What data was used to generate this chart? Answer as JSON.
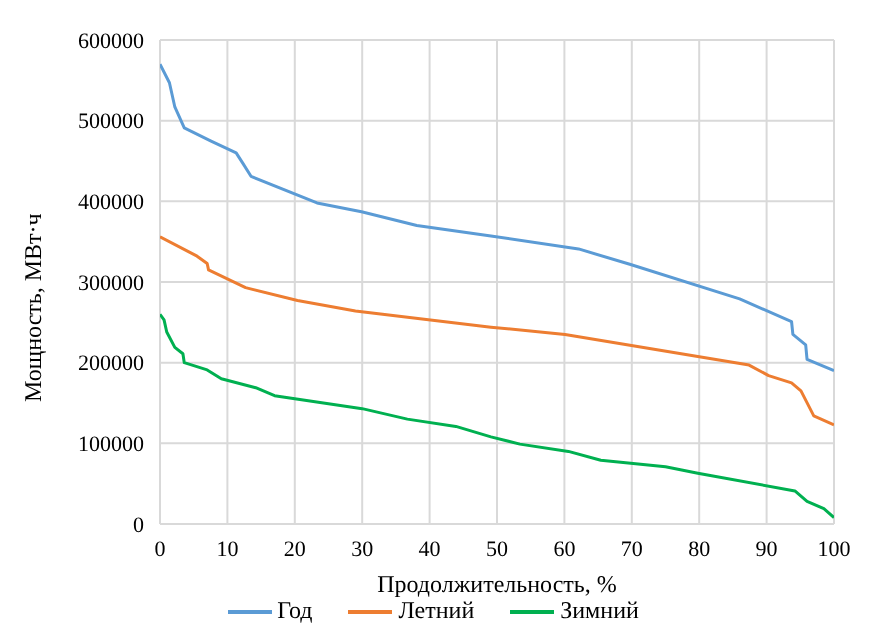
{
  "chart_data": {
    "type": "line",
    "xlabel": "Продолжительность, %",
    "ylabel": "Мощность, МВт·ч",
    "xlim": [
      0,
      100
    ],
    "xticks": [
      0,
      10,
      20,
      30,
      40,
      50,
      60,
      70,
      80,
      90,
      100
    ],
    "ylim": [
      0,
      600000
    ],
    "yticks": [
      0,
      100000,
      200000,
      300000,
      400000,
      500000,
      600000
    ],
    "grid": true,
    "legend": "bottom",
    "marker": "none",
    "line_style": "solid",
    "series": [
      {
        "name": "Год",
        "color": "#5b9bd5",
        "x": [
          0,
          1.4,
          2.2,
          3.6,
          7.5,
          11.3,
          12.3,
          13.5,
          23.3,
          29.9,
          38.1,
          49.1,
          62.1,
          69.7,
          86,
          93.7,
          93.9,
          95.8,
          96,
          100
        ],
        "values": [
          570000,
          547000,
          517000,
          491000,
          475000,
          460000,
          447000,
          431000,
          398000,
          387000,
          370000,
          357000,
          341000,
          322000,
          279000,
          251000,
          235000,
          222000,
          204000,
          190000
        ]
      },
      {
        "name": "Летний",
        "color": "#ed7d31",
        "x": [
          0,
          5.5,
          7,
          7.2,
          12.7,
          20.4,
          29,
          49.1,
          60.1,
          87.4,
          90.3,
          93.7,
          95.1,
          97,
          100
        ],
        "values": [
          356000,
          332000,
          323000,
          315000,
          293000,
          277000,
          264000,
          244000,
          235000,
          197000,
          184000,
          175000,
          165000,
          134000,
          123000
        ]
      },
      {
        "name": "Зимний",
        "color": "#00b050",
        "x": [
          0,
          0.6,
          1,
          2.2,
          3.4,
          3.6,
          7,
          9.1,
          14.2,
          17,
          30,
          36.7,
          43.9,
          49.1,
          53.4,
          60.6,
          65.4,
          75,
          79.8,
          94.2,
          96,
          98.5,
          100
        ],
        "values": [
          260000,
          253000,
          238000,
          219000,
          211000,
          200000,
          191000,
          180000,
          169000,
          159000,
          143000,
          130000,
          121000,
          108000,
          99000,
          90000,
          79000,
          71000,
          63000,
          41000,
          28000,
          19000,
          8000
        ]
      }
    ]
  }
}
